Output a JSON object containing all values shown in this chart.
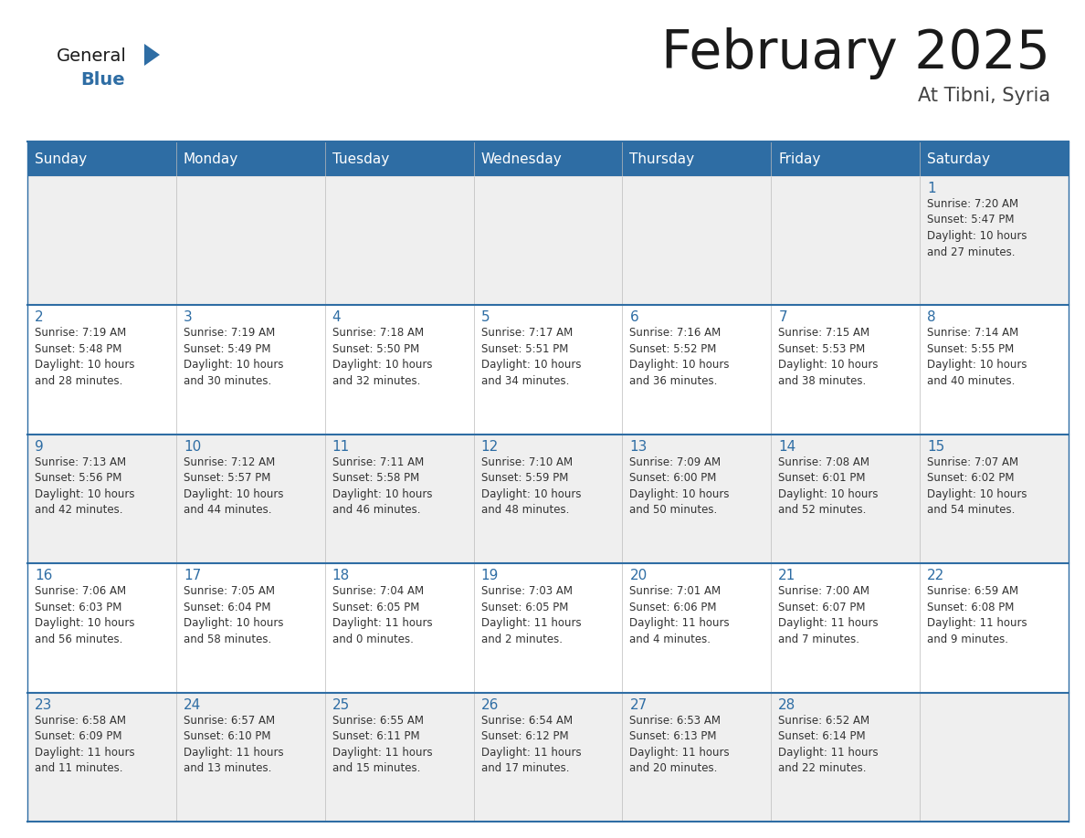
{
  "title": "February 2025",
  "subtitle": "At Tibni, Syria",
  "header_bg": "#2E6DA4",
  "header_text_color": "#FFFFFF",
  "row_bg_odd": "#EFEFEF",
  "row_bg_even": "#FFFFFF",
  "day_names": [
    "Sunday",
    "Monday",
    "Tuesday",
    "Wednesday",
    "Thursday",
    "Friday",
    "Saturday"
  ],
  "title_color": "#1a1a1a",
  "subtitle_color": "#444444",
  "day_num_color": "#2E6DA4",
  "cell_text_color": "#333333",
  "grid_line_color": "#2E6DA4",
  "logo_black": "#1a1a1a",
  "logo_blue": "#2E6DA4",
  "weeks": [
    [
      {
        "day": null,
        "sunrise": null,
        "sunset": null,
        "daylight": null
      },
      {
        "day": null,
        "sunrise": null,
        "sunset": null,
        "daylight": null
      },
      {
        "day": null,
        "sunrise": null,
        "sunset": null,
        "daylight": null
      },
      {
        "day": null,
        "sunrise": null,
        "sunset": null,
        "daylight": null
      },
      {
        "day": null,
        "sunrise": null,
        "sunset": null,
        "daylight": null
      },
      {
        "day": null,
        "sunrise": null,
        "sunset": null,
        "daylight": null
      },
      {
        "day": 1,
        "sunrise": "7:20 AM",
        "sunset": "5:47 PM",
        "daylight": "10 hours and 27 minutes."
      }
    ],
    [
      {
        "day": 2,
        "sunrise": "7:19 AM",
        "sunset": "5:48 PM",
        "daylight": "10 hours and 28 minutes."
      },
      {
        "day": 3,
        "sunrise": "7:19 AM",
        "sunset": "5:49 PM",
        "daylight": "10 hours and 30 minutes."
      },
      {
        "day": 4,
        "sunrise": "7:18 AM",
        "sunset": "5:50 PM",
        "daylight": "10 hours and 32 minutes."
      },
      {
        "day": 5,
        "sunrise": "7:17 AM",
        "sunset": "5:51 PM",
        "daylight": "10 hours and 34 minutes."
      },
      {
        "day": 6,
        "sunrise": "7:16 AM",
        "sunset": "5:52 PM",
        "daylight": "10 hours and 36 minutes."
      },
      {
        "day": 7,
        "sunrise": "7:15 AM",
        "sunset": "5:53 PM",
        "daylight": "10 hours and 38 minutes."
      },
      {
        "day": 8,
        "sunrise": "7:14 AM",
        "sunset": "5:55 PM",
        "daylight": "10 hours and 40 minutes."
      }
    ],
    [
      {
        "day": 9,
        "sunrise": "7:13 AM",
        "sunset": "5:56 PM",
        "daylight": "10 hours and 42 minutes."
      },
      {
        "day": 10,
        "sunrise": "7:12 AM",
        "sunset": "5:57 PM",
        "daylight": "10 hours and 44 minutes."
      },
      {
        "day": 11,
        "sunrise": "7:11 AM",
        "sunset": "5:58 PM",
        "daylight": "10 hours and 46 minutes."
      },
      {
        "day": 12,
        "sunrise": "7:10 AM",
        "sunset": "5:59 PM",
        "daylight": "10 hours and 48 minutes."
      },
      {
        "day": 13,
        "sunrise": "7:09 AM",
        "sunset": "6:00 PM",
        "daylight": "10 hours and 50 minutes."
      },
      {
        "day": 14,
        "sunrise": "7:08 AM",
        "sunset": "6:01 PM",
        "daylight": "10 hours and 52 minutes."
      },
      {
        "day": 15,
        "sunrise": "7:07 AM",
        "sunset": "6:02 PM",
        "daylight": "10 hours and 54 minutes."
      }
    ],
    [
      {
        "day": 16,
        "sunrise": "7:06 AM",
        "sunset": "6:03 PM",
        "daylight": "10 hours and 56 minutes."
      },
      {
        "day": 17,
        "sunrise": "7:05 AM",
        "sunset": "6:04 PM",
        "daylight": "10 hours and 58 minutes."
      },
      {
        "day": 18,
        "sunrise": "7:04 AM",
        "sunset": "6:05 PM",
        "daylight": "11 hours and 0 minutes."
      },
      {
        "day": 19,
        "sunrise": "7:03 AM",
        "sunset": "6:05 PM",
        "daylight": "11 hours and 2 minutes."
      },
      {
        "day": 20,
        "sunrise": "7:01 AM",
        "sunset": "6:06 PM",
        "daylight": "11 hours and 4 minutes."
      },
      {
        "day": 21,
        "sunrise": "7:00 AM",
        "sunset": "6:07 PM",
        "daylight": "11 hours and 7 minutes."
      },
      {
        "day": 22,
        "sunrise": "6:59 AM",
        "sunset": "6:08 PM",
        "daylight": "11 hours and 9 minutes."
      }
    ],
    [
      {
        "day": 23,
        "sunrise": "6:58 AM",
        "sunset": "6:09 PM",
        "daylight": "11 hours and 11 minutes."
      },
      {
        "day": 24,
        "sunrise": "6:57 AM",
        "sunset": "6:10 PM",
        "daylight": "11 hours and 13 minutes."
      },
      {
        "day": 25,
        "sunrise": "6:55 AM",
        "sunset": "6:11 PM",
        "daylight": "11 hours and 15 minutes."
      },
      {
        "day": 26,
        "sunrise": "6:54 AM",
        "sunset": "6:12 PM",
        "daylight": "11 hours and 17 minutes."
      },
      {
        "day": 27,
        "sunrise": "6:53 AM",
        "sunset": "6:13 PM",
        "daylight": "11 hours and 20 minutes."
      },
      {
        "day": 28,
        "sunrise": "6:52 AM",
        "sunset": "6:14 PM",
        "daylight": "11 hours and 22 minutes."
      },
      {
        "day": null,
        "sunrise": null,
        "sunset": null,
        "daylight": null
      }
    ]
  ]
}
